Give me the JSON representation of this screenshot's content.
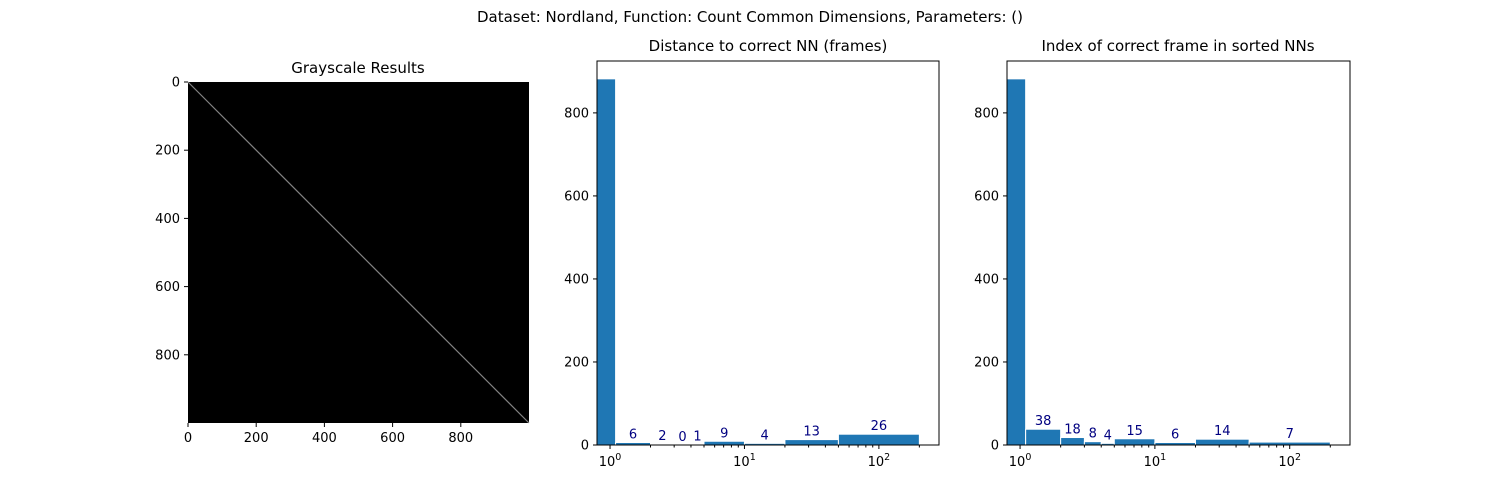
{
  "suptitle": "Dataset:  Nordland,  Function:  Count Common Dimensions, Parameters: ()",
  "colors": {
    "bar": "#1f77b4",
    "bar_edge": "#ffffff",
    "count_label": "#000080",
    "image_bg": "#000000"
  },
  "chart_data": [
    {
      "type": "heatmap",
      "title": "Grayscale Results",
      "xlim": [
        0,
        1000
      ],
      "ylim": [
        1000,
        0
      ],
      "xticks": [
        0,
        200,
        400,
        600,
        800
      ],
      "yticks": [
        0,
        200,
        400,
        600,
        800
      ],
      "description_of_values": "diagonal",
      "colormap": "gray"
    },
    {
      "type": "bar",
      "title": "Distance to correct NN (frames)",
      "xscale": "log",
      "xlim": [
        0.8,
        280
      ],
      "ylim": [
        0,
        925
      ],
      "xticks": [
        "10^0",
        "10^1",
        "10^2"
      ],
      "yticks": [
        0,
        200,
        400,
        600,
        800
      ],
      "bins": [
        {
          "x0": 0.8,
          "x1": 1.1,
          "count": 882,
          "label": ""
        },
        {
          "x0": 1.1,
          "x1": 2.0,
          "count": 6,
          "label": "6"
        },
        {
          "x0": 2.0,
          "x1": 3.0,
          "count": 2,
          "label": "2"
        },
        {
          "x0": 3.0,
          "x1": 4.0,
          "count": 0,
          "label": "0"
        },
        {
          "x0": 4.0,
          "x1": 5.0,
          "count": 1,
          "label": "1"
        },
        {
          "x0": 5.0,
          "x1": 10.0,
          "count": 9,
          "label": "9"
        },
        {
          "x0": 10.0,
          "x1": 20.0,
          "count": 4,
          "label": "4"
        },
        {
          "x0": 20.0,
          "x1": 50.0,
          "count": 13,
          "label": "13"
        },
        {
          "x0": 50.0,
          "x1": 200.0,
          "count": 26,
          "label": "26"
        }
      ]
    },
    {
      "type": "bar",
      "title": "Index of correct frame in sorted NNs",
      "xscale": "log",
      "xlim": [
        0.8,
        280
      ],
      "ylim": [
        0,
        925
      ],
      "xticks": [
        "10^0",
        "10^1",
        "10^2"
      ],
      "yticks": [
        0,
        200,
        400,
        600,
        800
      ],
      "bins": [
        {
          "x0": 0.8,
          "x1": 1.1,
          "count": 882,
          "label": ""
        },
        {
          "x0": 1.1,
          "x1": 2.0,
          "count": 38,
          "label": "38"
        },
        {
          "x0": 2.0,
          "x1": 3.0,
          "count": 18,
          "label": "18"
        },
        {
          "x0": 3.0,
          "x1": 4.0,
          "count": 8,
          "label": "8"
        },
        {
          "x0": 4.0,
          "x1": 5.0,
          "count": 4,
          "label": "4"
        },
        {
          "x0": 5.0,
          "x1": 10.0,
          "count": 15,
          "label": "15"
        },
        {
          "x0": 10.0,
          "x1": 20.0,
          "count": 6,
          "label": "6"
        },
        {
          "x0": 20.0,
          "x1": 50.0,
          "count": 14,
          "label": "14"
        },
        {
          "x0": 50.0,
          "x1": 200.0,
          "count": 7,
          "label": "7"
        }
      ]
    }
  ]
}
